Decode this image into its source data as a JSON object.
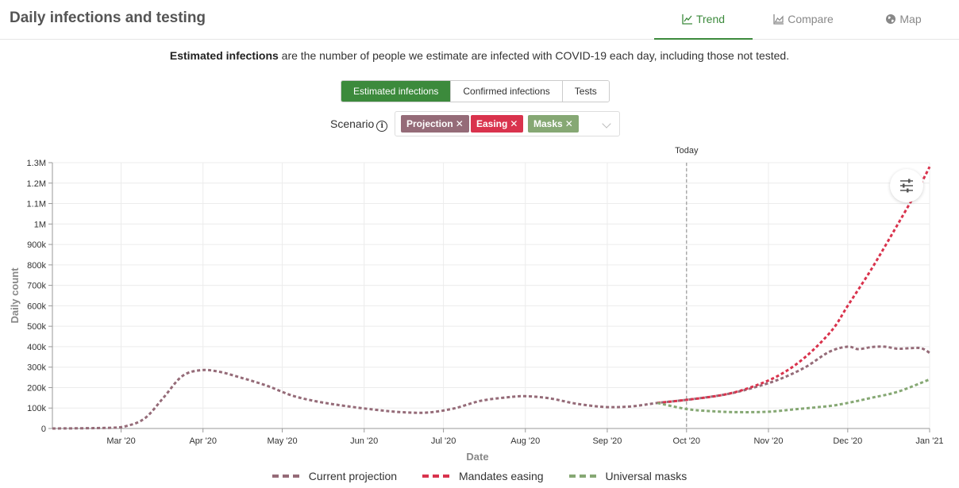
{
  "header": {
    "title": "Daily infections and testing",
    "tabs": [
      {
        "label": "Trend",
        "icon": "line-chart-icon",
        "active": true
      },
      {
        "label": "Compare",
        "icon": "area-chart-icon",
        "active": false
      },
      {
        "label": "Map",
        "icon": "globe-icon",
        "active": false
      }
    ]
  },
  "description": {
    "bold": "Estimated infections",
    "rest": " are the number of people we estimate are infected with COVID-19 each day, including those not tested."
  },
  "metric_toggle": {
    "options": [
      "Estimated infections",
      "Confirmed infections",
      "Tests"
    ],
    "selected": "Estimated infections",
    "active_color": "#3c8a3c"
  },
  "scenario": {
    "label": "Scenario",
    "chips": [
      {
        "label": "Projection",
        "color": "#956b78"
      },
      {
        "label": "Easing",
        "color": "#d9334d"
      },
      {
        "label": "Masks",
        "color": "#86a874"
      }
    ]
  },
  "chart_data": {
    "type": "line",
    "xlabel": "Date",
    "ylabel": "Daily count",
    "ylim": [
      0,
      1300000
    ],
    "yticks": [
      {
        "v": 0,
        "label": "0"
      },
      {
        "v": 100000,
        "label": "100k"
      },
      {
        "v": 200000,
        "label": "200k"
      },
      {
        "v": 300000,
        "label": "300k"
      },
      {
        "v": 400000,
        "label": "400k"
      },
      {
        "v": 500000,
        "label": "500k"
      },
      {
        "v": 600000,
        "label": "600k"
      },
      {
        "v": 700000,
        "label": "700k"
      },
      {
        "v": 800000,
        "label": "800k"
      },
      {
        "v": 900000,
        "label": "900k"
      },
      {
        "v": 1000000,
        "label": "1M"
      },
      {
        "v": 1100000,
        "label": "1.1M"
      },
      {
        "v": 1200000,
        "label": "1.2M"
      },
      {
        "v": 1300000,
        "label": "1.3M"
      }
    ],
    "xlim": [
      "2020-02-04",
      "2021-01-01"
    ],
    "xticks": [
      {
        "date": "2020-03-01",
        "label": "Mar '20"
      },
      {
        "date": "2020-04-01",
        "label": "Apr '20"
      },
      {
        "date": "2020-05-01",
        "label": "May '20"
      },
      {
        "date": "2020-06-01",
        "label": "Jun '20"
      },
      {
        "date": "2020-07-01",
        "label": "Jul '20"
      },
      {
        "date": "2020-08-01",
        "label": "Aug '20"
      },
      {
        "date": "2020-09-01",
        "label": "Sep '20"
      },
      {
        "date": "2020-10-01",
        "label": "Oct '20"
      },
      {
        "date": "2020-11-01",
        "label": "Nov '20"
      },
      {
        "date": "2020-12-01",
        "label": "Dec '20"
      },
      {
        "date": "2021-01-01",
        "label": "Jan '21"
      }
    ],
    "today": {
      "date": "2020-10-01",
      "label": "Today"
    },
    "grid": true,
    "legend_position": "bottom",
    "series": [
      {
        "name": "Current projection",
        "color": "#956b78",
        "points": [
          [
            "2020-02-04",
            0
          ],
          [
            "2020-02-25",
            3000
          ],
          [
            "2020-03-03",
            12000
          ],
          [
            "2020-03-10",
            50000
          ],
          [
            "2020-03-17",
            150000
          ],
          [
            "2020-03-24",
            255000
          ],
          [
            "2020-03-31",
            285000
          ],
          [
            "2020-04-07",
            278000
          ],
          [
            "2020-04-15",
            250000
          ],
          [
            "2020-04-25",
            210000
          ],
          [
            "2020-05-05",
            160000
          ],
          [
            "2020-05-15",
            130000
          ],
          [
            "2020-05-25",
            110000
          ],
          [
            "2020-06-05",
            92000
          ],
          [
            "2020-06-15",
            80000
          ],
          [
            "2020-06-25",
            78000
          ],
          [
            "2020-07-05",
            98000
          ],
          [
            "2020-07-15",
            135000
          ],
          [
            "2020-07-25",
            152000
          ],
          [
            "2020-08-01",
            158000
          ],
          [
            "2020-08-10",
            148000
          ],
          [
            "2020-08-20",
            122000
          ],
          [
            "2020-08-31",
            105000
          ],
          [
            "2020-09-10",
            108000
          ],
          [
            "2020-09-20",
            125000
          ],
          [
            "2020-10-01",
            140000
          ],
          [
            "2020-10-15",
            165000
          ],
          [
            "2020-10-25",
            195000
          ],
          [
            "2020-11-05",
            240000
          ],
          [
            "2020-11-15",
            300000
          ],
          [
            "2020-11-24",
            375000
          ],
          [
            "2020-12-01",
            400000
          ],
          [
            "2020-12-05",
            388000
          ],
          [
            "2020-12-10",
            398000
          ],
          [
            "2020-12-15",
            400000
          ],
          [
            "2020-12-20",
            390000
          ],
          [
            "2020-12-25",
            393000
          ],
          [
            "2020-12-29",
            392000
          ],
          [
            "2021-01-01",
            370000
          ]
        ]
      },
      {
        "name": "Mandates easing",
        "color": "#d9334d",
        "points": [
          [
            "2020-09-20",
            125000
          ],
          [
            "2020-10-01",
            140000
          ],
          [
            "2020-10-15",
            165000
          ],
          [
            "2020-10-25",
            200000
          ],
          [
            "2020-11-05",
            260000
          ],
          [
            "2020-11-15",
            350000
          ],
          [
            "2020-11-25",
            480000
          ],
          [
            "2020-12-01",
            600000
          ],
          [
            "2020-12-10",
            780000
          ],
          [
            "2020-12-20",
            1000000
          ],
          [
            "2020-12-28",
            1180000
          ],
          [
            "2021-01-01",
            1280000
          ]
        ]
      },
      {
        "name": "Universal masks",
        "color": "#86a874",
        "points": [
          [
            "2020-09-20",
            125000
          ],
          [
            "2020-10-01",
            95000
          ],
          [
            "2020-10-10",
            85000
          ],
          [
            "2020-10-20",
            80000
          ],
          [
            "2020-11-01",
            82000
          ],
          [
            "2020-11-12",
            95000
          ],
          [
            "2020-11-24",
            110000
          ],
          [
            "2020-12-01",
            125000
          ],
          [
            "2020-12-10",
            150000
          ],
          [
            "2020-12-20",
            180000
          ],
          [
            "2021-01-01",
            240000
          ]
        ]
      }
    ]
  }
}
